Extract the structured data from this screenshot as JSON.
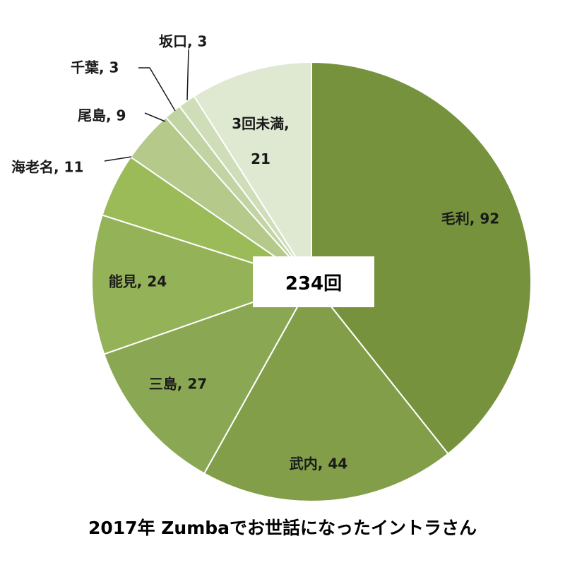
{
  "chart_data": {
    "type": "pie",
    "total_label": "234回",
    "caption": "2017年 Zumbaでお世話になったイントラさん",
    "slices": [
      {
        "name": "毛利",
        "value": 92,
        "label": "毛利, 92",
        "color": "#76923c"
      },
      {
        "name": "武内",
        "value": 44,
        "label": "武内, 44",
        "color": "#829e48"
      },
      {
        "name": "三島",
        "value": 27,
        "label": "三島, 27",
        "color": "#8aa853"
      },
      {
        "name": "能見",
        "value": 24,
        "label": "能見, 24",
        "color": "#94b258"
      },
      {
        "name": "海老名",
        "value": 11,
        "label": "海老名, 11",
        "color": "#9bbb59"
      },
      {
        "name": "尾島",
        "value": 9,
        "label": "尾島, 9",
        "color": "#b4c98a"
      },
      {
        "name": "千葉",
        "value": 3,
        "label": "千葉, 3",
        "color": "#c2d4a3"
      },
      {
        "name": "坂口",
        "value": 3,
        "label": "坂口, 3",
        "color": "#cfddb8"
      },
      {
        "name": "3回未満",
        "value": 21,
        "label_lines": [
          "3回未満,",
          "21"
        ],
        "color": "#dfe8d0"
      }
    ]
  }
}
